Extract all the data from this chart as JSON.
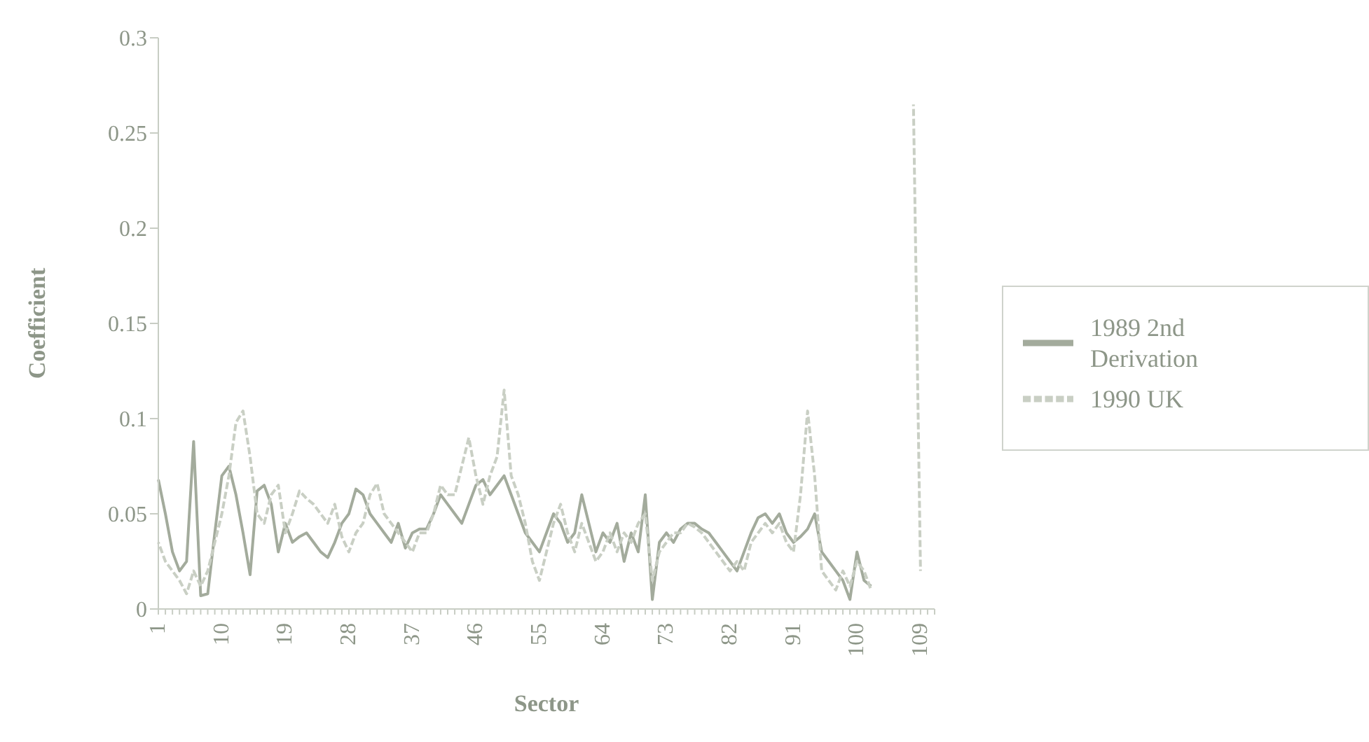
{
  "chart_data": {
    "type": "line",
    "xlabel": "Sector",
    "ylabel": "Coefficient",
    "categories": [
      "1",
      null,
      null,
      null,
      null,
      null,
      null,
      null,
      null,
      "10",
      null,
      null,
      null,
      null,
      null,
      null,
      null,
      null,
      "19",
      null,
      null,
      null,
      null,
      null,
      null,
      null,
      null,
      "28",
      null,
      null,
      null,
      null,
      null,
      null,
      null,
      null,
      "37",
      null,
      null,
      null,
      null,
      null,
      null,
      null,
      null,
      "46",
      null,
      null,
      null,
      null,
      null,
      null,
      null,
      null,
      "55",
      null,
      null,
      null,
      null,
      null,
      null,
      null,
      null,
      "64",
      null,
      null,
      null,
      null,
      null,
      null,
      null,
      null,
      "73",
      null,
      null,
      null,
      null,
      null,
      null,
      null,
      null,
      "82",
      null,
      null,
      null,
      null,
      null,
      null,
      null,
      null,
      "91",
      null,
      null,
      null,
      null,
      null,
      null,
      null,
      null,
      "100",
      null,
      null,
      null,
      null,
      null,
      null,
      null,
      null,
      "109",
      null,
      null
    ],
    "series": [
      {
        "name": "1989 2nd Derivation",
        "color": "#a3ab9c",
        "line_style": "solid",
        "values": [
          0.068,
          0.05,
          0.03,
          0.02,
          0.025,
          0.088,
          0.007,
          0.008,
          0.04,
          0.07,
          0.075,
          0.06,
          0.04,
          0.018,
          0.062,
          0.065,
          0.055,
          0.03,
          0.045,
          0.035,
          0.038,
          0.04,
          0.035,
          0.03,
          0.027,
          0.035,
          0.045,
          0.05,
          0.063,
          0.06,
          0.05,
          0.045,
          0.04,
          0.035,
          0.045,
          0.032,
          0.04,
          0.042,
          0.042,
          0.05,
          0.06,
          0.055,
          0.05,
          0.045,
          0.055,
          0.065,
          0.068,
          0.06,
          0.065,
          0.07,
          0.06,
          0.05,
          0.04,
          0.035,
          0.03,
          0.04,
          0.05,
          0.045,
          0.035,
          0.04,
          0.06,
          0.045,
          0.03,
          0.04,
          0.035,
          0.045,
          0.025,
          0.04,
          0.03,
          0.06,
          0.005,
          0.035,
          0.04,
          0.035,
          0.042,
          0.045,
          0.045,
          0.042,
          0.04,
          0.035,
          0.03,
          0.025,
          0.02,
          0.03,
          0.04,
          0.048,
          0.05,
          0.045,
          0.05,
          0.04,
          0.035,
          0.038,
          0.042,
          0.05,
          0.03,
          0.025,
          0.02,
          0.015,
          0.005,
          0.03,
          0.015,
          0.012,
          null,
          null,
          null,
          null,
          null,
          null,
          null,
          null,
          null
        ]
      },
      {
        "name": "1990 UK",
        "color": "#c9cfc4",
        "line_style": "dashed",
        "values": [
          0.035,
          0.025,
          0.02,
          0.015,
          0.008,
          0.02,
          0.012,
          0.02,
          0.035,
          0.05,
          0.07,
          0.098,
          0.104,
          0.08,
          0.05,
          0.045,
          0.06,
          0.065,
          0.04,
          0.05,
          0.062,
          0.058,
          0.055,
          0.05,
          0.045,
          0.055,
          0.038,
          0.03,
          0.04,
          0.045,
          0.06,
          0.066,
          0.05,
          0.045,
          0.04,
          0.035,
          0.03,
          0.04,
          0.04,
          0.05,
          0.065,
          0.06,
          0.06,
          0.075,
          0.09,
          0.07,
          0.055,
          0.07,
          0.08,
          0.115,
          0.07,
          0.06,
          0.045,
          0.025,
          0.015,
          0.03,
          0.045,
          0.055,
          0.04,
          0.03,
          0.045,
          0.035,
          0.025,
          0.03,
          0.04,
          0.03,
          0.04,
          0.035,
          0.045,
          0.05,
          0.015,
          0.03,
          0.035,
          0.04,
          0.04,
          0.045,
          0.043,
          0.04,
          0.035,
          0.03,
          0.025,
          0.02,
          0.025,
          0.02,
          0.035,
          0.04,
          0.045,
          0.04,
          0.045,
          0.035,
          0.03,
          0.06,
          0.104,
          0.07,
          0.02,
          0.015,
          0.01,
          0.02,
          0.012,
          0.025,
          0.02,
          0.01,
          null,
          null,
          null,
          null,
          null,
          0.265,
          0.02,
          null,
          null
        ]
      }
    ],
    "ylim": [
      0,
      0.3
    ],
    "yticks": [
      0,
      0.05,
      0.1,
      0.15,
      0.2,
      0.25,
      0.3
    ],
    "grid": false,
    "legend": "right",
    "marker": "none"
  }
}
